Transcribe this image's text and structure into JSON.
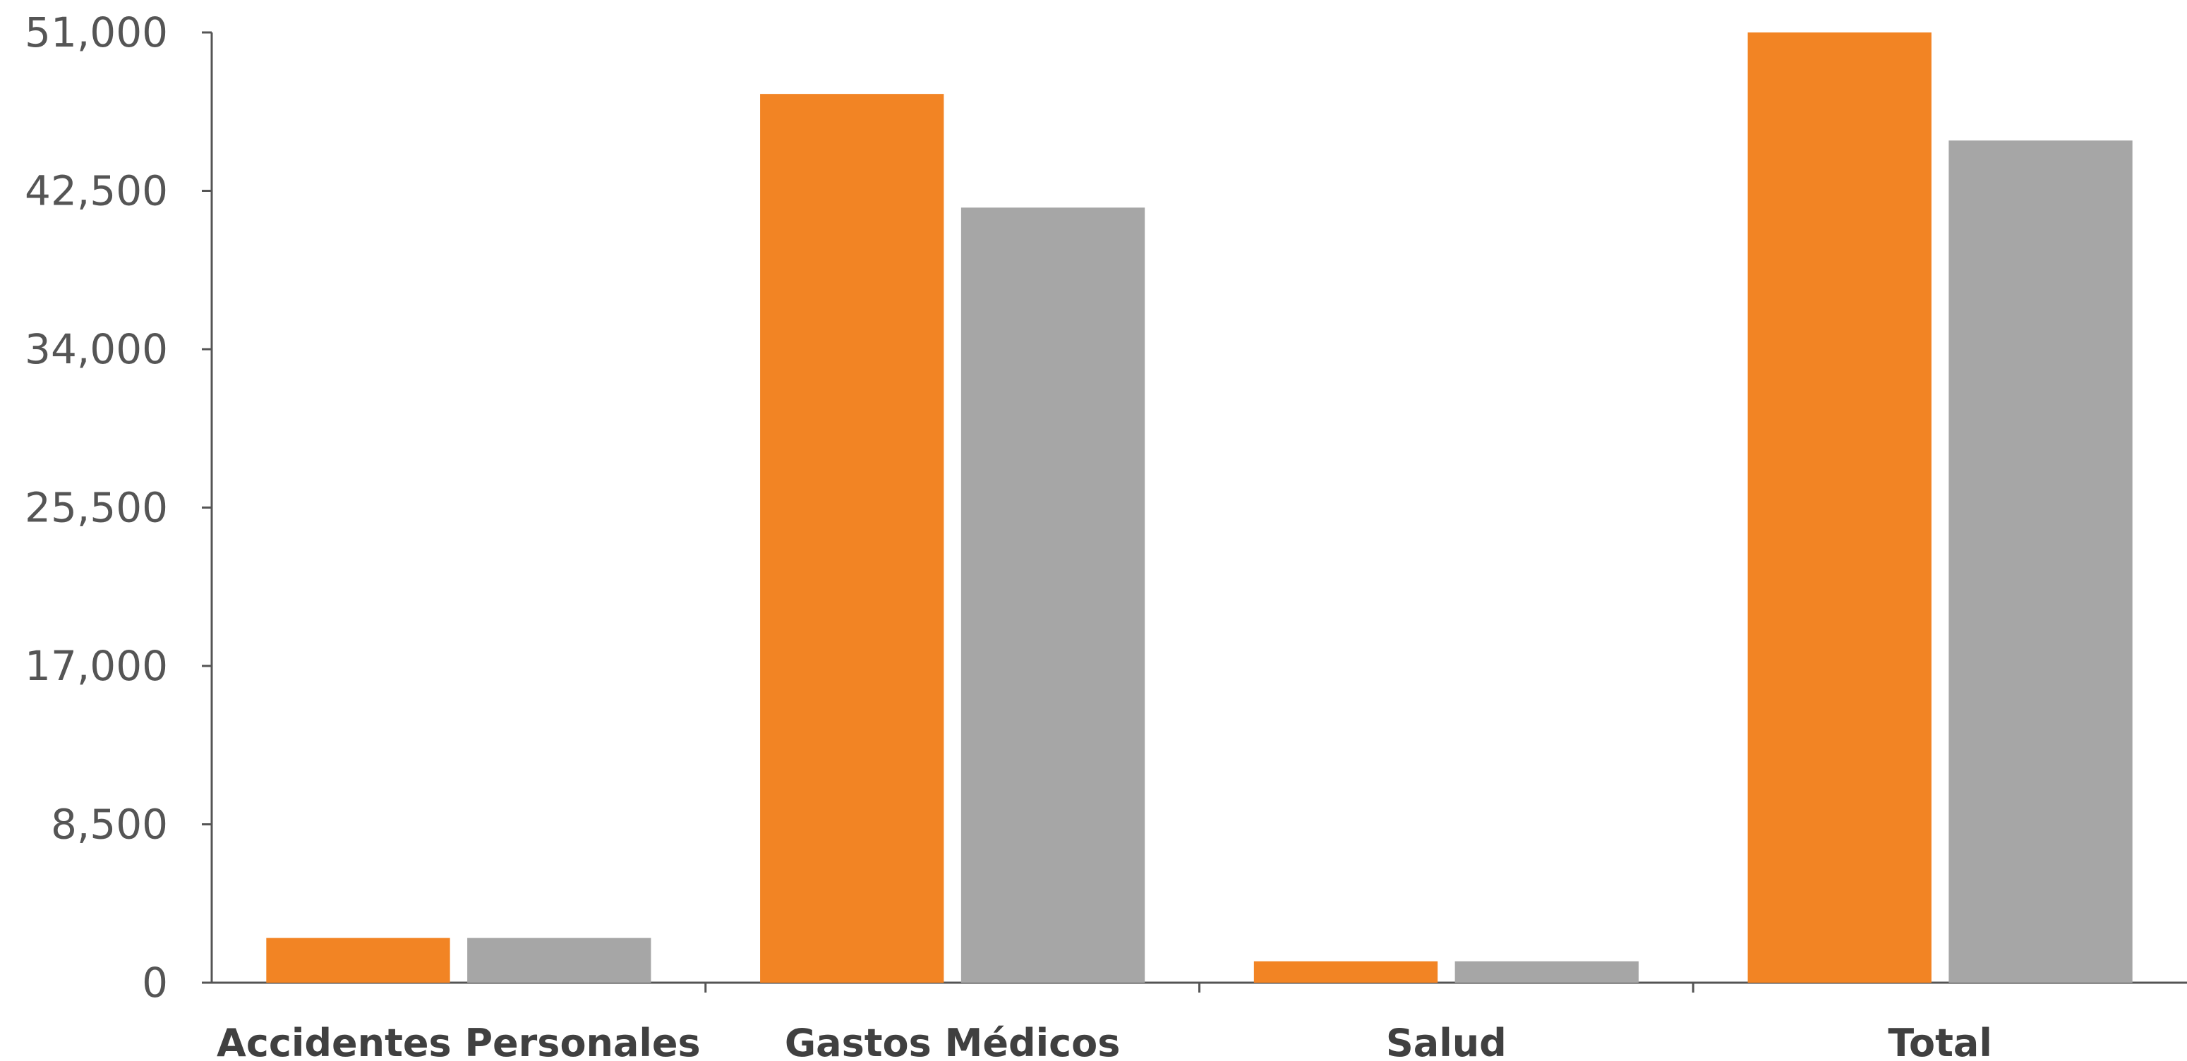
{
  "chart_data": {
    "type": "bar",
    "categories": [
      "Accidentes Personales",
      "Gastos Médicos",
      "Salud",
      "Total"
    ],
    "series": [
      {
        "values": [
          2400,
          47700,
          1150,
          51000
        ],
        "color": "#F28424"
      },
      {
        "values": [
          2400,
          41600,
          1150,
          45200
        ],
        "color": "#A6A6A6"
      }
    ],
    "ylim": [
      0,
      51000
    ],
    "yticks": [
      "0",
      "8,500",
      "17,000",
      "25,500",
      "34,000",
      "42,500",
      "51,000"
    ],
    "ytick_values": [
      0,
      8500,
      17000,
      25500,
      34000,
      42500,
      51000
    ],
    "grid": false,
    "legend": "none",
    "title": "",
    "xlabel": "",
    "ylabel": ""
  }
}
